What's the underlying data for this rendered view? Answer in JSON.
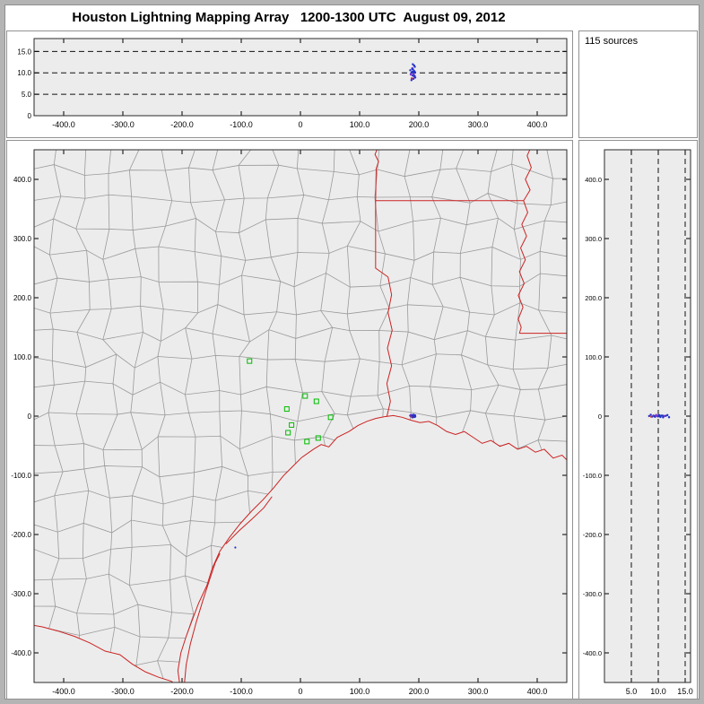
{
  "window": {
    "title": "Houston Lightning Mapping Array   1200-1300 UTC  August 09, 2012"
  },
  "panels": {
    "sources_label": "115 sources"
  },
  "chart_data": {
    "type": "scatter",
    "title": "Houston Lightning Mapping Array",
    "time_range": "1200-1300 UTC",
    "date": "August 09, 2012",
    "n_sources": 115,
    "layout": "LMA composite: altitude-vs-EW strip on top, plan-view map in center, altitude-vs-NS strip at right, source count box top-right",
    "axes": {
      "ew": {
        "range": [
          -450,
          450
        ],
        "ticks": [
          {
            "v": -400,
            "l": "-400.0"
          },
          {
            "v": -300,
            "l": "-300.0"
          },
          {
            "v": -200,
            "l": "-200.0"
          },
          {
            "v": -100,
            "l": "-100.0"
          },
          {
            "v": 0,
            "l": "0"
          },
          {
            "v": 100,
            "l": "100.0"
          },
          {
            "v": 200,
            "l": "200.0"
          },
          {
            "v": 300,
            "l": "300.0"
          },
          {
            "v": 400,
            "l": "400.0"
          }
        ]
      },
      "ns": {
        "range": [
          -450,
          450
        ],
        "ticks": [
          {
            "v": -400,
            "l": "-400.0"
          },
          {
            "v": -300,
            "l": "-300.0"
          },
          {
            "v": -200,
            "l": "-200.0"
          },
          {
            "v": -100,
            "l": "-100.0"
          },
          {
            "v": 0,
            "l": "0"
          },
          {
            "v": 100,
            "l": "100.0"
          },
          {
            "v": 200,
            "l": "200.0"
          },
          {
            "v": 300,
            "l": "300.0"
          },
          {
            "v": 400,
            "l": "400.0"
          }
        ]
      },
      "alt_top": {
        "range": [
          0,
          18
        ],
        "ticks": [
          {
            "v": 0,
            "l": "0"
          },
          {
            "v": 5,
            "l": "5.0"
          },
          {
            "v": 10,
            "l": "10.0"
          },
          {
            "v": 15,
            "l": "15.0"
          }
        ],
        "dashed": [
          5,
          10,
          15
        ]
      },
      "alt_right": {
        "range": [
          0,
          16
        ],
        "ticks": [
          {
            "v": 5,
            "l": "5.0"
          },
          {
            "v": 10,
            "l": "10.0"
          },
          {
            "v": 15,
            "l": "15.0"
          }
        ],
        "dashed": [
          5,
          10,
          15
        ]
      }
    },
    "colors": {
      "plot_bg": "#ececec",
      "frame": "#2a2a2a",
      "dash": "#111111",
      "county": "#9a9a9a",
      "state_border": "#cc2222",
      "station": "#00bb00",
      "points": {
        "b": "#2433c8",
        "p": "#7a35c8",
        "r": "#d02440"
      }
    },
    "sources_km": [
      [
        185.5,
        0.8,
        10.6,
        "b"
      ],
      [
        187.0,
        -0.5,
        9.9,
        "b"
      ],
      [
        188.2,
        1.5,
        10.2,
        "b"
      ],
      [
        189.0,
        0.2,
        11.1,
        "p"
      ],
      [
        189.6,
        -1.2,
        9.4,
        "b"
      ],
      [
        190.3,
        0.9,
        10.8,
        "b"
      ],
      [
        191.0,
        -0.3,
        10.0,
        "b"
      ],
      [
        191.8,
        1.1,
        9.1,
        "p"
      ],
      [
        192.5,
        -1.6,
        10.4,
        "b"
      ],
      [
        193.3,
        0.4,
        11.4,
        "b"
      ],
      [
        194.0,
        -0.8,
        8.9,
        "b"
      ],
      [
        186.4,
        1.9,
        9.6,
        "p"
      ],
      [
        188.8,
        -2.1,
        10.9,
        "b"
      ],
      [
        190.9,
        2.3,
        8.6,
        "b"
      ],
      [
        192.1,
        1.7,
        11.7,
        "b"
      ],
      [
        187.6,
        0.1,
        8.3,
        "b"
      ],
      [
        189.9,
        -1.9,
        12.0,
        "b"
      ],
      [
        191.4,
        0.6,
        9.7,
        "p"
      ],
      [
        193.8,
        1.3,
        10.1,
        "b"
      ],
      [
        188.0,
        -1.0,
        8.7,
        "r"
      ],
      [
        190.0,
        0.0,
        10.3,
        "b"
      ],
      [
        192.9,
        -0.2,
        9.3,
        "b"
      ]
    ],
    "map_only_points_km": [
      [
        -110,
        -222
      ]
    ],
    "stations_km": [
      [
        -86,
        93
      ],
      [
        8,
        34
      ],
      [
        27,
        25
      ],
      [
        -23,
        12
      ],
      [
        51,
        -2
      ],
      [
        -15,
        -15
      ],
      [
        -21,
        -28
      ],
      [
        11,
        -43
      ],
      [
        30,
        -37
      ]
    ],
    "map_geo": {
      "counties": {
        "spacing_km": 46,
        "jitter_km": 13,
        "seed": 11
      },
      "red_lines": [
        {
          "name": "coastline",
          "pts": [
            [
              -203,
              -460
            ],
            [
              -207,
              -430
            ],
            [
              -202,
              -400
            ],
            [
              -193,
              -372
            ],
            [
              -183,
              -345
            ],
            [
              -172,
              -316
            ],
            [
              -158,
              -286
            ],
            [
              -149,
              -257
            ],
            [
              -136,
              -228
            ],
            [
              -120,
              -205
            ],
            [
              -102,
              -182
            ],
            [
              -83,
              -161
            ],
            [
              -63,
              -141
            ],
            [
              -45,
              -121
            ],
            [
              -29,
              -101
            ],
            [
              -14,
              -86
            ],
            [
              2,
              -70
            ],
            [
              22,
              -56
            ],
            [
              35,
              -48
            ],
            [
              48,
              -52
            ],
            [
              62,
              -36
            ],
            [
              82,
              -26
            ],
            [
              97,
              -16
            ],
            [
              112,
              -9
            ],
            [
              127,
              -4
            ],
            [
              142,
              -1
            ],
            [
              157,
              1
            ],
            [
              172,
              -2
            ],
            [
              187,
              -7
            ],
            [
              202,
              -11
            ],
            [
              217,
              -9
            ],
            [
              232,
              -16
            ],
            [
              247,
              -26
            ],
            [
              262,
              -31
            ],
            [
              277,
              -26
            ],
            [
              292,
              -36
            ],
            [
              307,
              -46
            ],
            [
              322,
              -41
            ],
            [
              337,
              -51
            ],
            [
              352,
              -46
            ],
            [
              367,
              -56
            ],
            [
              382,
              -51
            ],
            [
              397,
              -61
            ],
            [
              412,
              -56
            ],
            [
              427,
              -71
            ],
            [
              442,
              -66
            ],
            [
              460,
              -84
            ]
          ]
        },
        {
          "name": "padre-island",
          "pts": [
            [
              -196,
              -452
            ],
            [
              -193,
              -420
            ],
            [
              -186,
              -385
            ],
            [
              -176,
              -348
            ],
            [
              -165,
              -312
            ],
            [
              -154,
              -278
            ],
            [
              -144,
              -248
            ],
            [
              -136,
              -232
            ]
          ]
        },
        {
          "name": "matagorda-island",
          "pts": [
            [
              -126,
              -216
            ],
            [
              -104,
              -194
            ],
            [
              -82,
              -174
            ],
            [
              -62,
              -155
            ],
            [
              -48,
              -136
            ]
          ]
        },
        {
          "name": "rio-grande",
          "pts": [
            [
              -203,
              -460
            ],
            [
              -218,
              -448
            ],
            [
              -240,
              -441
            ],
            [
              -262,
              -432
            ],
            [
              -284,
              -419
            ],
            [
              -305,
              -403
            ],
            [
              -330,
              -397
            ],
            [
              -356,
              -383
            ],
            [
              -382,
              -372
            ],
            [
              -410,
              -363
            ],
            [
              -436,
              -356
            ],
            [
              -460,
              -352
            ]
          ]
        },
        {
          "name": "sabine-tx-la-border",
          "pts": [
            [
              146,
              -1
            ],
            [
              152,
              25
            ],
            [
              146,
              55
            ],
            [
              154,
              85
            ],
            [
              147,
              115
            ],
            [
              155,
              145
            ],
            [
              148,
              175
            ],
            [
              154,
              205
            ],
            [
              148,
              235
            ],
            [
              127,
              250
            ],
            [
              127,
              364
            ]
          ]
        },
        {
          "name": "tx-ar-border",
          "pts": [
            [
              127,
              364
            ],
            [
              128,
              418
            ],
            [
              132,
              430
            ],
            [
              126,
              442
            ],
            [
              130,
              452
            ],
            [
              128,
              460
            ]
          ]
        },
        {
          "name": "ar-la-border",
          "pts": [
            [
              127,
              364
            ],
            [
              377,
              364
            ]
          ]
        },
        {
          "name": "mississippi-river",
          "pts": [
            [
              392,
              460
            ],
            [
              383,
              440
            ],
            [
              390,
              420
            ],
            [
              380,
              400
            ],
            [
              388,
              382
            ],
            [
              377,
              364
            ],
            [
              384,
              344
            ],
            [
              374,
              324
            ],
            [
              382,
              304
            ],
            [
              372,
              284
            ],
            [
              380,
              264
            ],
            [
              370,
              244
            ],
            [
              378,
              224
            ],
            [
              368,
              204
            ],
            [
              376,
              184
            ],
            [
              368,
              164
            ],
            [
              373,
              150
            ],
            [
              370,
              140
            ]
          ]
        },
        {
          "name": "la-ms-border",
          "pts": [
            [
              370,
              140
            ],
            [
              460,
              140
            ]
          ]
        }
      ]
    }
  }
}
